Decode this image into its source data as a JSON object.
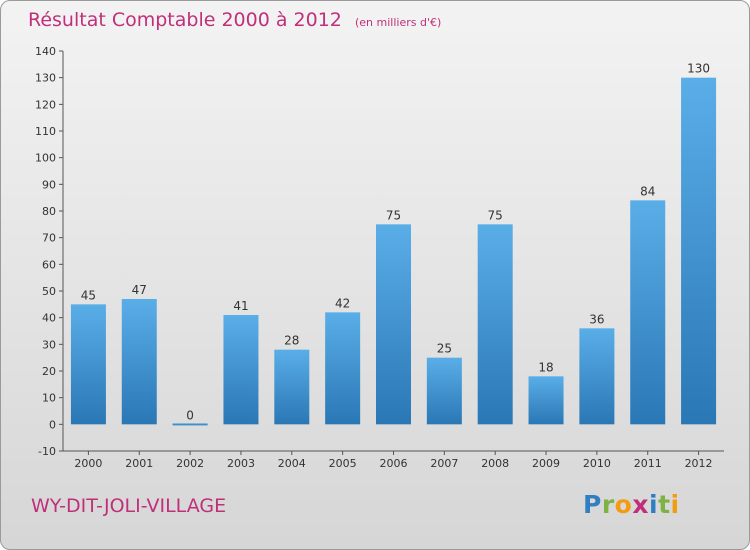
{
  "header": {
    "title": "Résultat Comptable 2000 à 2012",
    "unit": "(en milliers d'€)"
  },
  "footer": {
    "place": "WY-DIT-JOLI-VILLAGE",
    "logo_letters": [
      {
        "ch": "P",
        "color": "#2f7fc1"
      },
      {
        "ch": "r",
        "color": "#7cb342"
      },
      {
        "ch": "o",
        "color": "#f39c12"
      },
      {
        "ch": "x",
        "color": "#c0307a"
      },
      {
        "ch": "i",
        "color": "#2f7fc1"
      },
      {
        "ch": "t",
        "color": "#7cb342"
      },
      {
        "ch": "i",
        "color": "#f39c12"
      }
    ]
  },
  "colors": {
    "bar_light": "#5aaee8",
    "bar_dark": "#2a77b5",
    "accent": "#c0307a"
  },
  "chart_data": {
    "type": "bar",
    "title": "Résultat Comptable 2000 à 2012",
    "subtitle": "(en milliers d'€)",
    "categories": [
      "2000",
      "2001",
      "2002",
      "2003",
      "2004",
      "2005",
      "2006",
      "2007",
      "2008",
      "2009",
      "2010",
      "2011",
      "2012"
    ],
    "values": [
      45,
      47,
      0,
      41,
      28,
      42,
      75,
      25,
      75,
      18,
      36,
      84,
      130
    ],
    "ylim": [
      -10,
      140
    ],
    "yticks": [
      -10,
      0,
      10,
      20,
      30,
      40,
      50,
      60,
      70,
      80,
      90,
      100,
      110,
      120,
      130,
      140
    ],
    "grid": false,
    "legend": "none"
  }
}
